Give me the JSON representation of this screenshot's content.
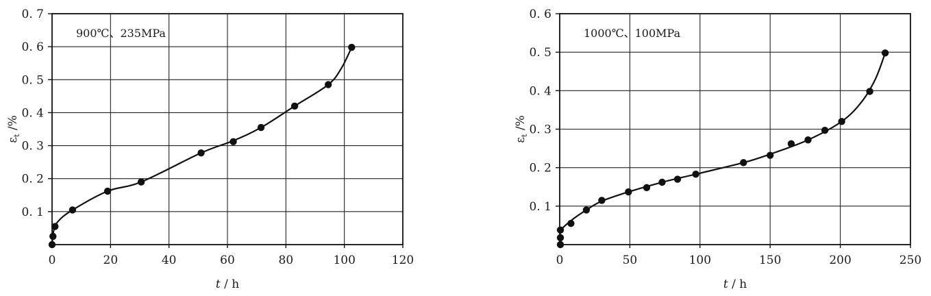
{
  "chart_data": [
    {
      "type": "scatter",
      "annotation": "900℃、235MPa",
      "xlabel_italic": "t",
      "xlabel_rest": " / h",
      "ylabel_sym": "ε",
      "ylabel_sub": "t",
      "ylabel_rest": " /%",
      "xlim": [
        0,
        120
      ],
      "ylim": [
        0,
        0.7
      ],
      "xticks": [
        0,
        20,
        40,
        60,
        80,
        100,
        120
      ],
      "xtick_labels": [
        "0",
        "20",
        "40",
        "60",
        "80",
        "100",
        "120"
      ],
      "yticks": [
        0.1,
        0.2,
        0.3,
        0.4,
        0.5,
        0.6,
        0.7
      ],
      "ytick_labels": [
        "0. 1",
        "0. 2",
        "0. 3",
        "0. 4",
        "0. 5",
        "0. 6",
        "0. 7"
      ],
      "grid": true,
      "series": [
        {
          "points": [
            {
              "x": 0,
              "y": 0.0
            },
            {
              "x": 0.3,
              "y": 0.025
            },
            {
              "x": 1,
              "y": 0.055
            },
            {
              "x": 7,
              "y": 0.105
            },
            {
              "x": 19,
              "y": 0.162
            },
            {
              "x": 30.5,
              "y": 0.19
            },
            {
              "x": 51,
              "y": 0.278
            },
            {
              "x": 62,
              "y": 0.312
            },
            {
              "x": 71.5,
              "y": 0.355
            },
            {
              "x": 83,
              "y": 0.42
            },
            {
              "x": 94.5,
              "y": 0.485
            },
            {
              "x": 102.5,
              "y": 0.598
            }
          ],
          "curve": [
            {
              "x": 0,
              "y": 0.0
            },
            {
              "x": 0.5,
              "y": 0.04
            },
            {
              "x": 2,
              "y": 0.07
            },
            {
              "x": 7,
              "y": 0.105
            },
            {
              "x": 19,
              "y": 0.162
            },
            {
              "x": 30.5,
              "y": 0.19
            },
            {
              "x": 51,
              "y": 0.278
            },
            {
              "x": 62,
              "y": 0.315
            },
            {
              "x": 71.5,
              "y": 0.355
            },
            {
              "x": 83,
              "y": 0.42
            },
            {
              "x": 94.5,
              "y": 0.485
            },
            {
              "x": 99,
              "y": 0.535
            },
            {
              "x": 102.5,
              "y": 0.598
            }
          ]
        }
      ]
    },
    {
      "type": "scatter",
      "annotation": "1000℃、100MPa",
      "xlabel_italic": "t",
      "xlabel_rest": " / h",
      "ylabel_sym": "ε",
      "ylabel_sub": "t",
      "ylabel_rest": " /%",
      "xlim": [
        0,
        250
      ],
      "ylim": [
        0,
        0.6
      ],
      "xticks": [
        0,
        50,
        100,
        150,
        200,
        250
      ],
      "xtick_labels": [
        "0",
        "50",
        "100",
        "150",
        "200",
        "250"
      ],
      "yticks": [
        0.1,
        0.2,
        0.3,
        0.4,
        0.5,
        0.6
      ],
      "ytick_labels": [
        "0. 1",
        "0. 2",
        "0. 3",
        "0. 4",
        "0. 5",
        "0. 6"
      ],
      "grid": true,
      "series": [
        {
          "points": [
            {
              "x": 0.5,
              "y": 0.0
            },
            {
              "x": 0.5,
              "y": 0.018
            },
            {
              "x": 0.5,
              "y": 0.038
            },
            {
              "x": 8,
              "y": 0.055
            },
            {
              "x": 19,
              "y": 0.09
            },
            {
              "x": 30,
              "y": 0.115
            },
            {
              "x": 49,
              "y": 0.137
            },
            {
              "x": 62,
              "y": 0.148
            },
            {
              "x": 73,
              "y": 0.162
            },
            {
              "x": 84,
              "y": 0.17
            },
            {
              "x": 97,
              "y": 0.183
            },
            {
              "x": 131,
              "y": 0.213
            },
            {
              "x": 150,
              "y": 0.232
            },
            {
              "x": 165,
              "y": 0.262
            },
            {
              "x": 177,
              "y": 0.272
            },
            {
              "x": 189,
              "y": 0.297
            },
            {
              "x": 201,
              "y": 0.32
            },
            {
              "x": 221,
              "y": 0.398
            },
            {
              "x": 232,
              "y": 0.498
            }
          ],
          "curve": [
            {
              "x": 0.5,
              "y": 0.0
            },
            {
              "x": 0.8,
              "y": 0.035
            },
            {
              "x": 8,
              "y": 0.062
            },
            {
              "x": 19,
              "y": 0.09
            },
            {
              "x": 30,
              "y": 0.113
            },
            {
              "x": 49,
              "y": 0.137
            },
            {
              "x": 73,
              "y": 0.162
            },
            {
              "x": 97,
              "y": 0.183
            },
            {
              "x": 131,
              "y": 0.213
            },
            {
              "x": 150,
              "y": 0.235
            },
            {
              "x": 177,
              "y": 0.272
            },
            {
              "x": 201,
              "y": 0.32
            },
            {
              "x": 215,
              "y": 0.37
            },
            {
              "x": 225,
              "y": 0.43
            },
            {
              "x": 232,
              "y": 0.498
            }
          ]
        }
      ]
    }
  ]
}
